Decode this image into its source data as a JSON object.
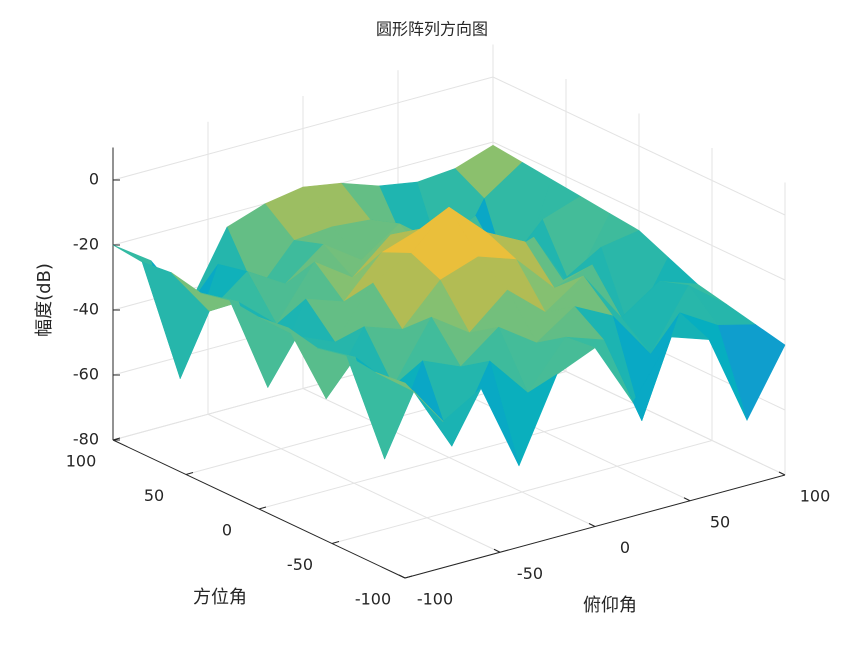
{
  "chart_data": {
    "type": "surface",
    "title": "圆形阵列方向图",
    "xlabel": "俯仰角",
    "ylabel": "方位角",
    "zlabel": "幅度(dB)",
    "x": [
      -100,
      -80,
      -60,
      -40,
      -20,
      0,
      20,
      40,
      60,
      80,
      100
    ],
    "y": [
      -100,
      -80,
      -60,
      -40,
      -20,
      0,
      20,
      40,
      60,
      80,
      100
    ],
    "z": [
      [
        -20,
        -35,
        -28,
        -55,
        -30,
        -25,
        -45,
        -28,
        -32,
        -60,
        -40
      ],
      [
        -21,
        -30,
        -50,
        -27,
        -40,
        -26,
        -30,
        -58,
        -28,
        -35,
        -38
      ],
      [
        -20,
        -55,
        -28,
        -33,
        -24,
        -32,
        -24,
        -30,
        -45,
        -27,
        -36
      ],
      [
        -22,
        -28,
        -40,
        -22,
        -30,
        -20,
        -30,
        -22,
        -38,
        -30,
        -34
      ],
      [
        -20,
        -45,
        -26,
        -30,
        -18,
        -14,
        -18,
        -30,
        -26,
        -50,
        -30
      ],
      [
        -21,
        -30,
        -35,
        -20,
        -14,
        -3,
        -14,
        -20,
        -35,
        -28,
        -26
      ],
      [
        -20,
        -50,
        -26,
        -30,
        -18,
        -14,
        -18,
        -30,
        -26,
        -45,
        -25
      ],
      [
        -22,
        -28,
        -38,
        -22,
        -30,
        -20,
        -30,
        -22,
        -40,
        -28,
        -24
      ],
      [
        -20,
        -35,
        -26,
        -33,
        -24,
        -32,
        -24,
        -33,
        -28,
        -55,
        -23
      ],
      [
        -21,
        -60,
        -28,
        -40,
        -27,
        -26,
        -27,
        -40,
        -50,
        -30,
        -22
      ],
      [
        -20,
        -28,
        -45,
        -24,
        -20,
        -18,
        -20,
        -24,
        -26,
        -25,
        -21
      ]
    ],
    "xlim": [
      -100,
      100
    ],
    "ylim": [
      -100,
      100
    ],
    "zlim": [
      -80,
      10
    ],
    "xticks": [
      -100,
      -50,
      0,
      50,
      100
    ],
    "yticks": [
      -100,
      -50,
      0,
      50,
      100
    ],
    "zticks": [
      -80,
      -60,
      -40,
      -20,
      0
    ],
    "grid": true,
    "colormap": [
      "#352a87",
      "#0f6ddd",
      "#1496d4",
      "#06aec0",
      "#38bba0",
      "#8cc06c",
      "#d1b93f",
      "#f5c13a",
      "#f9fb0e"
    ]
  }
}
